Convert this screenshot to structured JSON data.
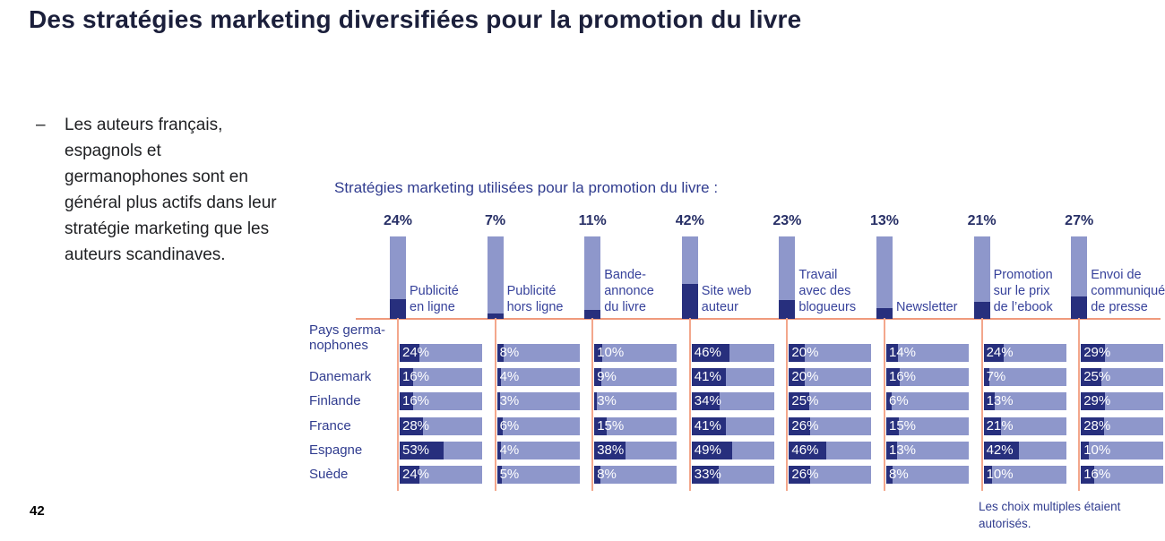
{
  "page": {
    "title": "Des stratégies marketing diversifiées pour la promotion du livre",
    "bullet_dash": "–",
    "bullet": "Les auteurs français, espagnols et germanophones sont en général plus actifs dans leur stratégie marketing que les auteurs scandinaves.",
    "footnote": "Les choix multiples étaient autorisés.",
    "page_number": "42"
  },
  "chart_data": {
    "type": "table",
    "title": "Stratégies marketing utilisées pour la promotion du livre :",
    "legend_position": "none",
    "grid": "salmon column separators",
    "columns": [
      {
        "label": "Publicité en ligne",
        "label_lines": [
          "Publicité",
          "en ligne"
        ],
        "total_pct": 24
      },
      {
        "label": "Publicité hors ligne",
        "label_lines": [
          "Publicité",
          "hors ligne"
        ],
        "total_pct": 7
      },
      {
        "label": "Bande-annonce du livre",
        "label_lines": [
          "Bande-",
          "annonce",
          "du livre"
        ],
        "total_pct": 11
      },
      {
        "label": "Site web auteur",
        "label_lines": [
          "Site web",
          "auteur"
        ],
        "total_pct": 42
      },
      {
        "label": "Travail avec des blogueurs",
        "label_lines": [
          "Travail",
          "avec des",
          "blogueurs"
        ],
        "total_pct": 23
      },
      {
        "label": "Newsletter",
        "label_lines": [
          "Newsletter"
        ],
        "total_pct": 13
      },
      {
        "label": "Promotion sur le prix de l’ebook",
        "label_lines": [
          "Promotion",
          "sur le prix",
          "de l’ebook"
        ],
        "total_pct": 21
      },
      {
        "label": "Envoi de communiqué de presse",
        "label_lines": [
          "Envoi de",
          "communiqué",
          "de presse"
        ],
        "total_pct": 27
      }
    ],
    "rows": [
      {
        "label": "Pays germa-nophones",
        "label_lines": [
          "Pays germa-",
          "nophones"
        ],
        "values": [
          24,
          8,
          10,
          46,
          20,
          14,
          24,
          29
        ]
      },
      {
        "label": "Danemark",
        "label_lines": [
          "Danemark"
        ],
        "values": [
          16,
          4,
          9,
          41,
          20,
          16,
          7,
          25
        ]
      },
      {
        "label": "Finlande",
        "label_lines": [
          "Finlande"
        ],
        "values": [
          16,
          3,
          3,
          34,
          25,
          6,
          13,
          29
        ]
      },
      {
        "label": "France",
        "label_lines": [
          "France"
        ],
        "values": [
          28,
          6,
          15,
          41,
          26,
          15,
          21,
          28
        ]
      },
      {
        "label": "Espagne",
        "label_lines": [
          "Espagne"
        ],
        "values": [
          53,
          4,
          38,
          49,
          46,
          13,
          42,
          10
        ]
      },
      {
        "label": "Suède",
        "label_lines": [
          "Suède"
        ],
        "values": [
          24,
          5,
          8,
          33,
          26,
          8,
          10,
          16
        ]
      }
    ],
    "value_unit": "%",
    "value_range": [
      0,
      100
    ]
  },
  "colors": {
    "bar_light": "#8e97cb",
    "bar_dark": "#272f7d",
    "separator_salmon": "#f09a7c",
    "text_navy": "#303c8f",
    "title_dark": "#1b1f3b",
    "value_text_white": "#ffffff"
  }
}
